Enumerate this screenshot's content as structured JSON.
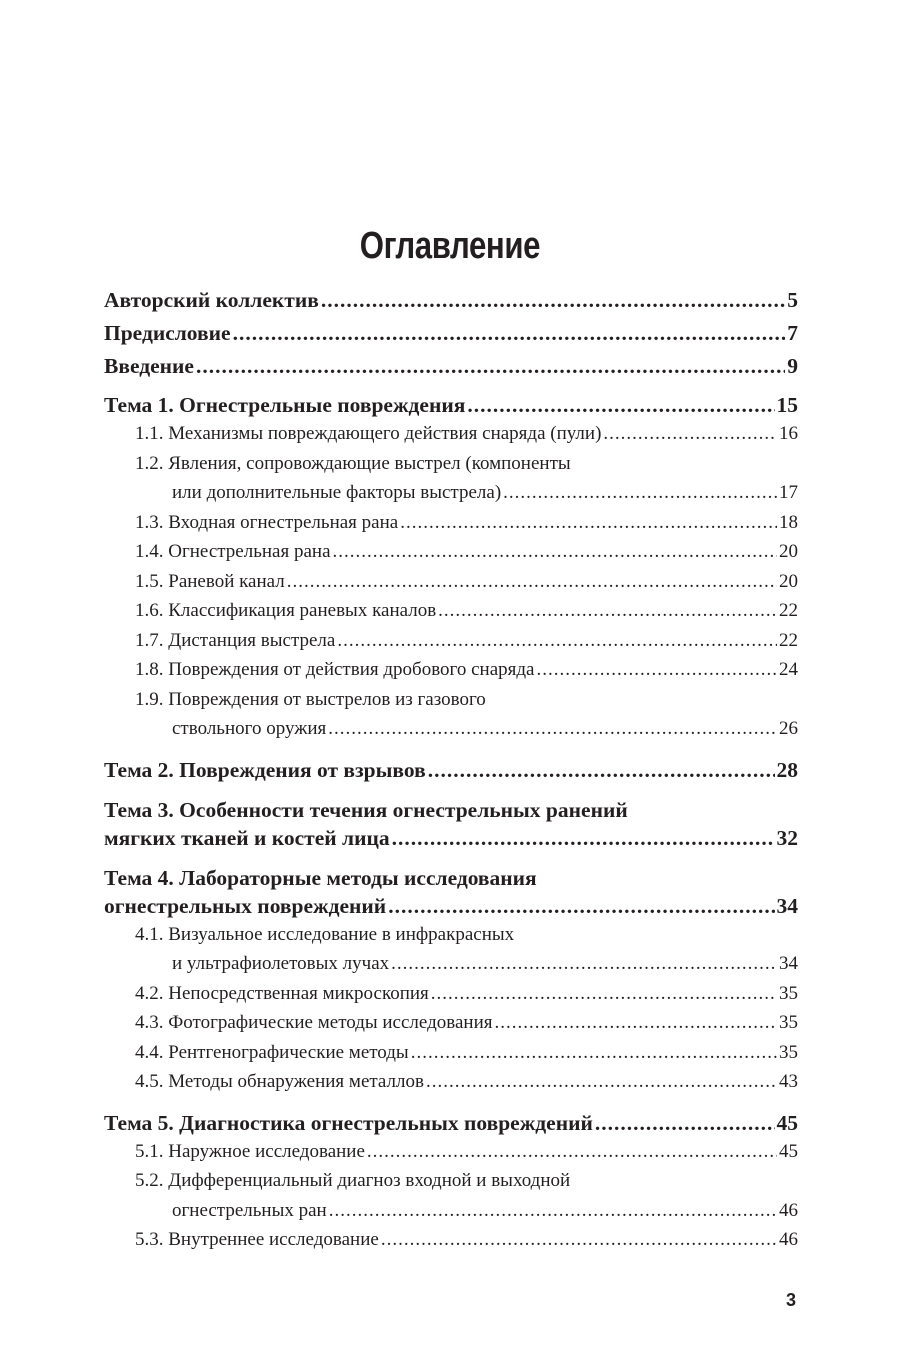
{
  "title": "Оглавление",
  "page_number": "3",
  "entries": [
    {
      "level": "major",
      "lines": [
        "Авторский коллектив"
      ],
      "page": "5"
    },
    {
      "level": "major",
      "lines": [
        "Предисловие"
      ],
      "page": "7"
    },
    {
      "level": "major",
      "lines": [
        "Введение"
      ],
      "page": "9"
    },
    {
      "level": "major",
      "lines": [
        "Тема 1. Огнестрельные повреждения"
      ],
      "page": "15"
    },
    {
      "level": "sub",
      "lines": [
        "1.1. Механизмы повреждающего действия снаряда (пули)"
      ],
      "page": "16"
    },
    {
      "level": "sub",
      "lines": [
        "1.2. Явления, сопровождающие выстрел (компоненты",
        "или дополнительные факторы выстрела)"
      ],
      "page": "17"
    },
    {
      "level": "sub",
      "lines": [
        "1.3. Входная огнестрельная рана"
      ],
      "page": "18"
    },
    {
      "level": "sub",
      "lines": [
        "1.4. Огнестрельная рана"
      ],
      "page": "20"
    },
    {
      "level": "sub",
      "lines": [
        "1.5. Раневой канал"
      ],
      "page": "20"
    },
    {
      "level": "sub",
      "lines": [
        "1.6. Классификация раневых каналов"
      ],
      "page": "22"
    },
    {
      "level": "sub",
      "lines": [
        "1.7. Дистанция выстрела"
      ],
      "page": "22"
    },
    {
      "level": "sub",
      "lines": [
        "1.8. Повреждения от действия дробового снаряда"
      ],
      "page": "24"
    },
    {
      "level": "sub",
      "lines": [
        "1.9. Повреждения от выстрелов из газового",
        "ствольного оружия"
      ],
      "page": "26"
    },
    {
      "level": "major",
      "lines": [
        "Тема 2. Повреждения от взрывов"
      ],
      "page": "28"
    },
    {
      "level": "major",
      "lines": [
        "Тема 3. Особенности течения огнестрельных ранений",
        "мягких тканей и костей лица"
      ],
      "page": "32"
    },
    {
      "level": "major",
      "lines": [
        "Тема 4. Лабораторные методы исследования",
        "огнестрельных повреждений"
      ],
      "page": "34"
    },
    {
      "level": "sub",
      "lines": [
        "4.1. Визуальное исследование в инфракрасных",
        "и ультрафиолетовых лучах"
      ],
      "page": "34"
    },
    {
      "level": "sub",
      "lines": [
        "4.2. Непосредственная микроскопия"
      ],
      "page": "35"
    },
    {
      "level": "sub",
      "lines": [
        "4.3. Фотографические методы исследования"
      ],
      "page": "35"
    },
    {
      "level": "sub",
      "lines": [
        "4.4. Рентгенографические методы"
      ],
      "page": "35"
    },
    {
      "level": "sub",
      "lines": [
        "4.5. Методы обнаружения металлов"
      ],
      "page": "43"
    },
    {
      "level": "major",
      "lines": [
        "Тема 5. Диагностика огнестрельных повреждений"
      ],
      "page": "45"
    },
    {
      "level": "sub",
      "lines": [
        "5.1. Наружное исследование"
      ],
      "page": "45"
    },
    {
      "level": "sub",
      "lines": [
        "5.2. Дифференциальный диагноз входной и выходной",
        "огнестрельных ран"
      ],
      "page": "46"
    },
    {
      "level": "sub",
      "lines": [
        "5.3. Внутреннее исследование"
      ],
      "page": "46"
    }
  ]
}
